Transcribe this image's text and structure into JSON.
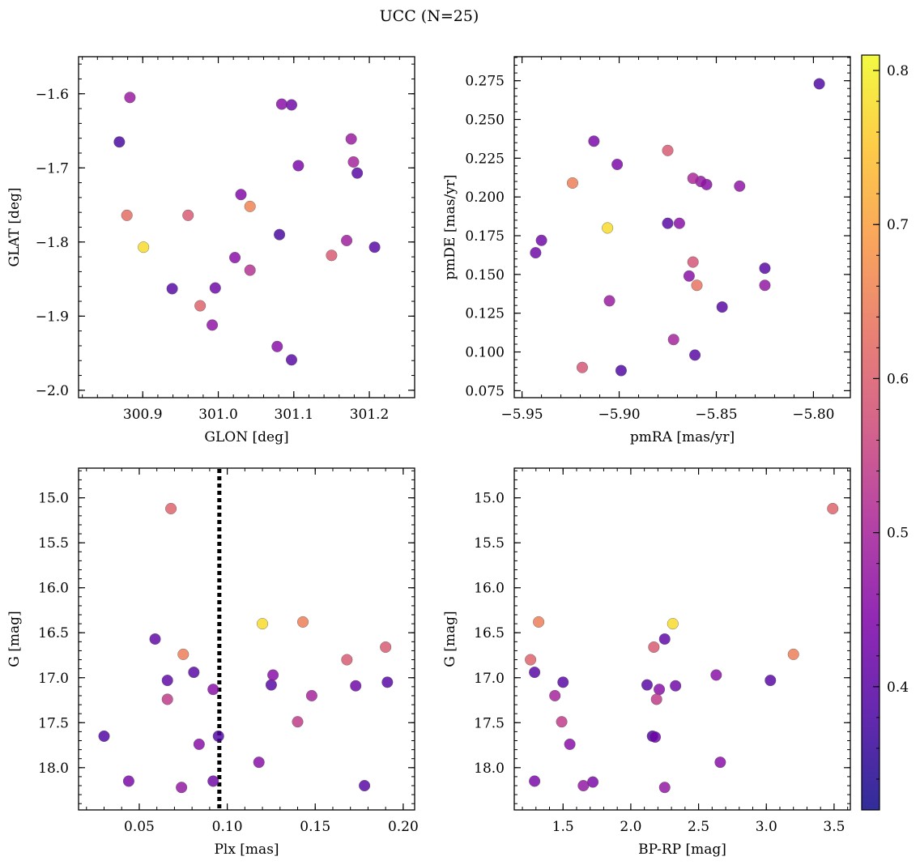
{
  "figure": {
    "suptitle": "UCC (N=25)"
  },
  "colorbar": {
    "min": 0.32,
    "max": 0.81,
    "ticks": [
      0.4,
      0.5,
      0.6,
      0.7,
      0.8
    ],
    "colormap": "plasma"
  },
  "chart_data": [
    {
      "type": "scatter",
      "xlabel": "GLON [deg]",
      "ylabel": "GLAT [deg]",
      "xlim": [
        300.815,
        301.26
      ],
      "ylim": [
        -2.01,
        -1.55
      ],
      "xticks": [
        300.9,
        301.0,
        301.1,
        301.2
      ],
      "yticks": [
        -1.6,
        -1.7,
        -1.8,
        -1.9,
        -2.0
      ],
      "x": [
        300.869,
        300.883,
        300.879,
        300.901,
        300.939,
        300.96,
        300.976,
        300.992,
        300.996,
        301.022,
        301.03,
        301.042,
        301.042,
        301.078,
        301.081,
        301.084,
        301.097,
        301.097,
        301.106,
        301.15,
        301.17,
        301.176,
        301.179,
        301.184,
        301.207
      ],
      "y": [
        -1.665,
        -1.605,
        -1.764,
        -1.807,
        -1.863,
        -1.764,
        -1.886,
        -1.912,
        -1.862,
        -1.821,
        -1.736,
        -1.752,
        -1.838,
        -1.941,
        -1.79,
        -1.614,
        -1.959,
        -1.615,
        -1.697,
        -1.818,
        -1.798,
        -1.661,
        -1.692,
        -1.707,
        -1.807
      ],
      "c": [
        0.33,
        0.45,
        0.62,
        0.8,
        0.35,
        0.58,
        0.6,
        0.43,
        0.38,
        0.42,
        0.41,
        0.66,
        0.5,
        0.42,
        0.33,
        0.42,
        0.35,
        0.38,
        0.4,
        0.58,
        0.46,
        0.45,
        0.47,
        0.35,
        0.35
      ]
    },
    {
      "type": "scatter",
      "xlabel": "pmRA [mas/yr]",
      "ylabel": "pmDE [mas/yr]",
      "xlim": [
        -5.954,
        -5.781
      ],
      "ylim": [
        0.0705,
        0.2905
      ],
      "xticks": [
        -5.95,
        -5.9,
        -5.85,
        -5.8
      ],
      "yticks": [
        0.075,
        0.1,
        0.125,
        0.15,
        0.175,
        0.2,
        0.225,
        0.25,
        0.275
      ],
      "x": [
        -5.797,
        -5.913,
        -5.901,
        -5.875,
        -5.862,
        -5.858,
        -5.855,
        -5.838,
        -5.924,
        -5.875,
        -5.869,
        -5.906,
        -5.94,
        -5.943,
        -5.862,
        -5.825,
        -5.864,
        -5.86,
        -5.825,
        -5.847,
        -5.905,
        -5.872,
        -5.861,
        -5.919,
        -5.899
      ],
      "y": [
        0.273,
        0.236,
        0.221,
        0.23,
        0.212,
        0.21,
        0.208,
        0.207,
        0.209,
        0.183,
        0.183,
        0.18,
        0.172,
        0.164,
        0.158,
        0.154,
        0.149,
        0.143,
        0.143,
        0.129,
        0.133,
        0.108,
        0.098,
        0.09,
        0.088
      ],
      "c": [
        0.34,
        0.4,
        0.4,
        0.58,
        0.48,
        0.44,
        0.42,
        0.43,
        0.65,
        0.35,
        0.42,
        0.8,
        0.38,
        0.38,
        0.57,
        0.35,
        0.42,
        0.63,
        0.44,
        0.35,
        0.45,
        0.47,
        0.35,
        0.57,
        0.34
      ]
    },
    {
      "type": "scatter",
      "xlabel": "Plx [mas]",
      "ylabel": "G [mag]",
      "xlim": [
        0.0155,
        0.2065
      ],
      "ylim": [
        18.47,
        14.67
      ],
      "xticks": [
        0.05,
        0.1,
        0.15,
        0.2
      ],
      "yticks": [
        15.0,
        15.5,
        16.0,
        16.5,
        17.0,
        17.5,
        18.0
      ],
      "vline": 0.0955,
      "x": [
        0.068,
        0.059,
        0.066,
        0.081,
        0.075,
        0.066,
        0.092,
        0.12,
        0.143,
        0.126,
        0.125,
        0.148,
        0.168,
        0.19,
        0.191,
        0.173,
        0.03,
        0.044,
        0.074,
        0.084,
        0.095,
        0.092,
        0.118,
        0.14,
        0.178
      ],
      "y": [
        15.12,
        16.57,
        17.03,
        16.94,
        16.74,
        17.24,
        17.13,
        16.4,
        16.38,
        16.97,
        17.08,
        17.2,
        16.8,
        16.66,
        17.05,
        17.09,
        17.65,
        18.15,
        18.22,
        17.74,
        17.65,
        18.15,
        17.94,
        17.49,
        18.2
      ],
      "c": [
        0.6,
        0.36,
        0.36,
        0.35,
        0.65,
        0.52,
        0.42,
        0.8,
        0.65,
        0.42,
        0.35,
        0.47,
        0.58,
        0.58,
        0.35,
        0.38,
        0.34,
        0.4,
        0.44,
        0.42,
        0.34,
        0.38,
        0.42,
        0.52,
        0.35
      ]
    },
    {
      "type": "scatter",
      "xlabel": "BP-RP [mag]",
      "ylabel": "G [mag]",
      "xlim": [
        1.14,
        3.62
      ],
      "ylim": [
        18.47,
        14.67
      ],
      "xticks": [
        1.5,
        2.0,
        2.5,
        3.0,
        3.5
      ],
      "yticks": [
        15.0,
        15.5,
        16.0,
        16.5,
        17.0,
        17.5,
        18.0
      ],
      "x": [
        3.49,
        1.32,
        2.31,
        2.25,
        2.17,
        1.26,
        3.2,
        1.29,
        1.5,
        2.63,
        3.03,
        2.12,
        2.21,
        2.19,
        2.33,
        1.44,
        1.49,
        1.55,
        2.16,
        2.18,
        2.66,
        1.29,
        1.72,
        1.65,
        2.25
      ],
      "y": [
        15.12,
        16.38,
        16.4,
        16.57,
        16.66,
        16.8,
        16.74,
        16.94,
        17.05,
        16.97,
        17.03,
        17.08,
        17.13,
        17.24,
        17.09,
        17.2,
        17.49,
        17.74,
        17.65,
        17.66,
        17.94,
        18.15,
        18.16,
        18.2,
        18.22
      ],
      "c": [
        0.6,
        0.65,
        0.8,
        0.36,
        0.58,
        0.6,
        0.65,
        0.35,
        0.35,
        0.42,
        0.35,
        0.35,
        0.42,
        0.52,
        0.38,
        0.47,
        0.52,
        0.42,
        0.34,
        0.38,
        0.42,
        0.4,
        0.4,
        0.44,
        0.44
      ]
    }
  ]
}
